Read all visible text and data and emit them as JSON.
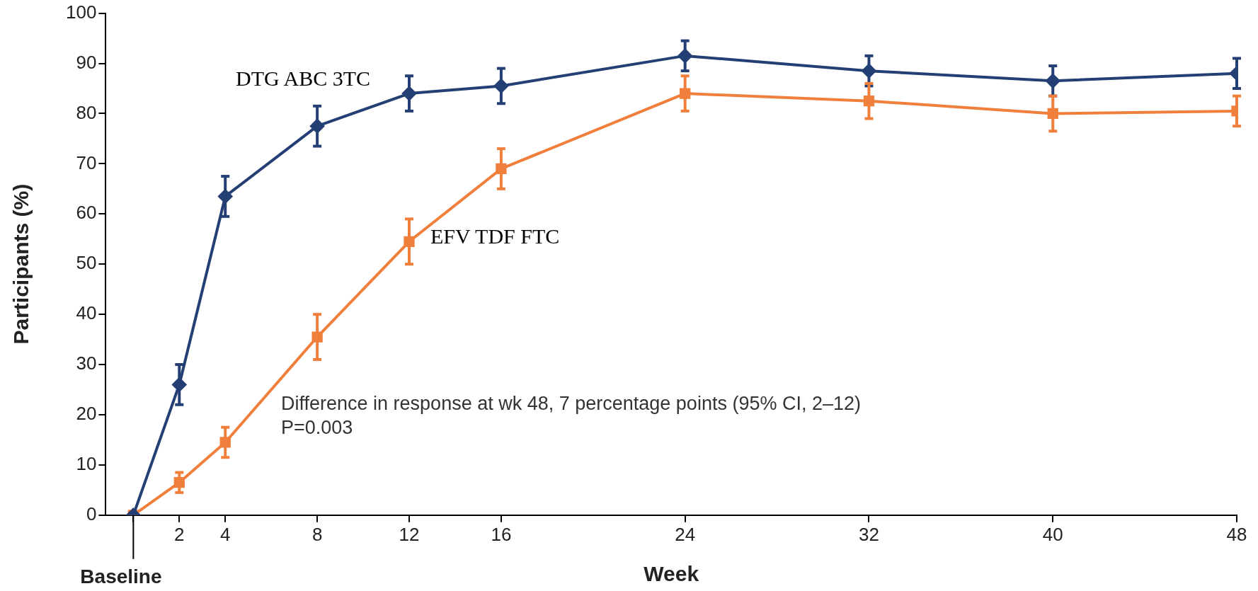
{
  "chart_data": {
    "type": "line",
    "ylabel": "Participants (%)",
    "xlabel": "Week",
    "x": [
      0,
      2,
      4,
      8,
      12,
      16,
      24,
      32,
      40,
      48
    ],
    "series": [
      {
        "name": "DTG ABC 3TC",
        "color": "#243f73",
        "marker": "diamond",
        "values": [
          0,
          26,
          63.5,
          77.5,
          84,
          85.5,
          91.5,
          88.5,
          86.5,
          88
        ],
        "errors": [
          null,
          4,
          4,
          4,
          3.5,
          3.5,
          3,
          3,
          3,
          3
        ]
      },
      {
        "name": "EFV TDF FTC",
        "color": "#f07f3c",
        "marker": "square",
        "values": [
          0,
          6.5,
          14.5,
          35.5,
          54.5,
          69,
          84,
          82.5,
          80,
          80.5
        ],
        "errors": [
          null,
          2,
          3,
          4.5,
          4.5,
          4,
          3.5,
          3.5,
          3.5,
          3
        ]
      }
    ],
    "xlim": [
      -1.2,
      48
    ],
    "xticks": [
      {
        "value": 0,
        "label": null
      },
      2,
      4,
      8,
      12,
      16,
      24,
      32,
      40,
      48
    ],
    "ylim": [
      0,
      100
    ],
    "yticks": [
      0,
      10,
      20,
      30,
      40,
      50,
      60,
      70,
      80,
      90,
      100
    ],
    "grid": false,
    "legend": false,
    "annotations": [
      "Baseline",
      "Difference in response at wk 48, 7 percentage points (95% CI, 2–12)",
      "P=0.003"
    ]
  }
}
